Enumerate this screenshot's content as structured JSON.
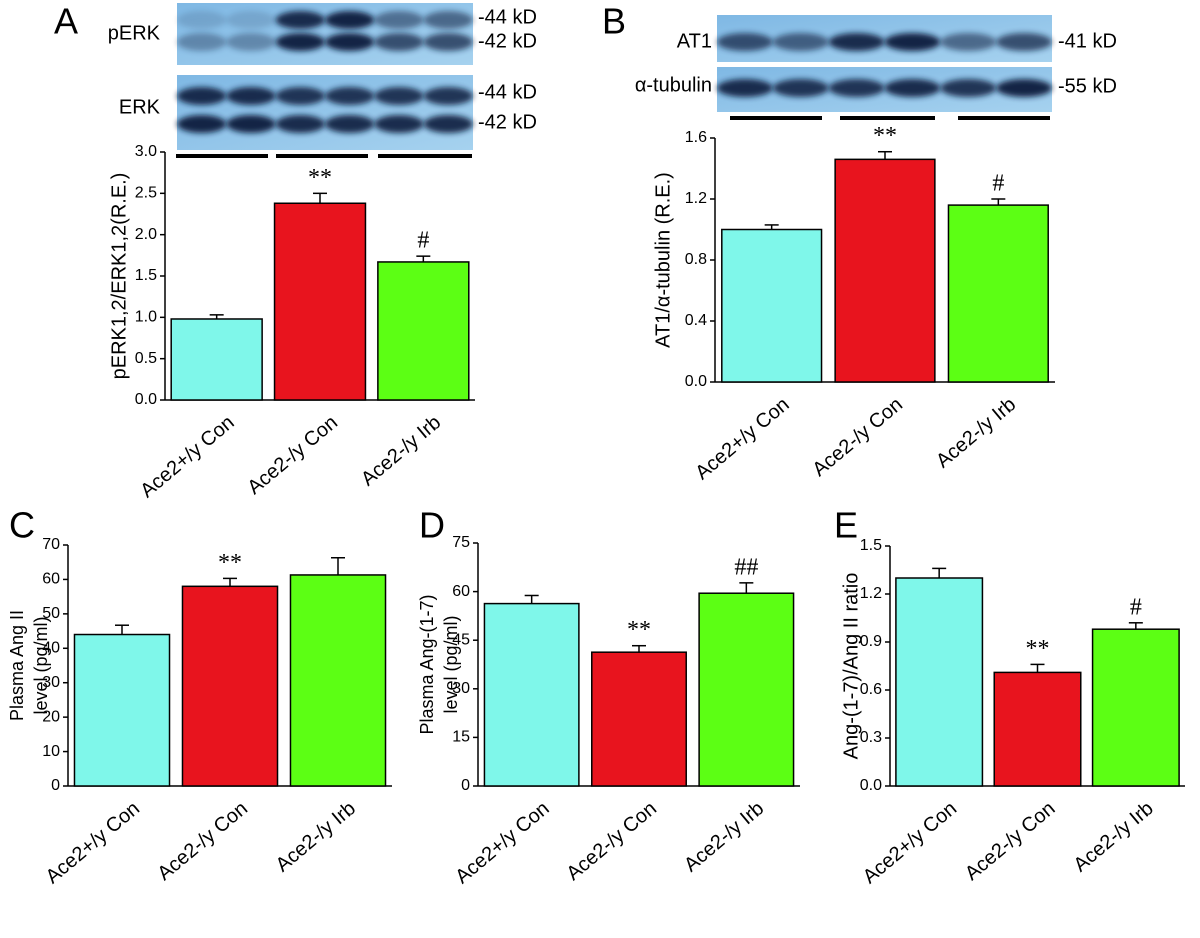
{
  "chart_data": [
    {
      "type": "bar",
      "panel": "A",
      "y_label": "pERK1,2/ERK1,2(R.E.)",
      "categories": [
        "Ace2+/y Con",
        "Ace2-/y Con",
        "Ace2-/y Irb"
      ],
      "values": [
        0.98,
        2.38,
        1.67
      ],
      "errors": [
        0.05,
        0.12,
        0.07
      ],
      "annotations": [
        null,
        "**",
        "#"
      ],
      "colors": [
        "#7ff7ea",
        "#e8141e",
        "#5cff14"
      ],
      "ylim": [
        0,
        3
      ],
      "yticks": [
        {
          "value": 0,
          "label": "0.0"
        },
        0.5,
        {
          "value": 1,
          "label": "1.0"
        },
        1.5,
        {
          "value": 2,
          "label": "2.0"
        },
        2.5,
        {
          "value": 3,
          "label": "3.0"
        }
      ],
      "blots": [
        {
          "label": "pERK",
          "markers": [
            "-44 kD",
            "-42 kD"
          ]
        },
        {
          "label": "ERK",
          "markers": [
            "-44 kD",
            "-42 kD"
          ]
        }
      ]
    },
    {
      "type": "bar",
      "panel": "B",
      "y_label": "AT1/α-tubulin (R.E.)",
      "categories": [
        "Ace2+/y Con",
        "Ace2-/y Con",
        "Ace2-/y Irb"
      ],
      "values": [
        1.0,
        1.46,
        1.16
      ],
      "errors": [
        0.03,
        0.05,
        0.04
      ],
      "annotations": [
        null,
        "**",
        "#"
      ],
      "colors": [
        "#7ff7ea",
        "#e8141e",
        "#5cff14"
      ],
      "ylim": [
        0,
        1.6
      ],
      "yticks": [
        {
          "value": 0,
          "label": "0.0"
        },
        0.4,
        0.8,
        1.2,
        1.6
      ],
      "blots": [
        {
          "label": "AT1",
          "markers": [
            "-41 kD"
          ]
        },
        {
          "label": "α-tubulin",
          "markers": [
            "-55 kD"
          ]
        }
      ]
    },
    {
      "type": "bar",
      "panel": "C",
      "y_label": [
        "Plasma Ang II",
        "level (pg/ml)"
      ],
      "categories": [
        "Ace2+/y Con",
        "Ace2-/y Con",
        "Ace2-/y Irb"
      ],
      "values": [
        44,
        58,
        61.3
      ],
      "errors": [
        2.7,
        2.3,
        5
      ],
      "annotations": [
        null,
        "**",
        null
      ],
      "colors": [
        "#7ff7ea",
        "#e8141e",
        "#5cff14"
      ],
      "ylim": [
        0,
        70
      ],
      "yticks": [
        0,
        10,
        20,
        30,
        40,
        50,
        60,
        70
      ]
    },
    {
      "type": "bar",
      "panel": "D",
      "y_label": [
        "Plasma Ang-(1-7)",
        "level (pg/ml)"
      ],
      "categories": [
        "Ace2+/y Con",
        "Ace2-/y Con",
        "Ace2-/y Irb"
      ],
      "values": [
        56.3,
        41.3,
        59.5
      ],
      "errors": [
        2.5,
        2,
        3.2
      ],
      "annotations": [
        null,
        "**",
        "##"
      ],
      "colors": [
        "#7ff7ea",
        "#e8141e",
        "#5cff14"
      ],
      "ylim": [
        0,
        75
      ],
      "yticks": [
        0,
        15,
        30,
        45,
        60,
        75
      ]
    },
    {
      "type": "bar",
      "panel": "E",
      "y_label": "Ang-(1-7)/Ang II ratio",
      "categories": [
        "Ace2+/y Con",
        "Ace2-/y Con",
        "Ace2-/y Irb"
      ],
      "values": [
        1.3,
        0.71,
        0.98
      ],
      "errors": [
        0.06,
        0.05,
        0.04
      ],
      "annotations": [
        null,
        "**",
        "#"
      ],
      "colors": [
        "#7ff7ea",
        "#e8141e",
        "#5cff14"
      ],
      "ylim": [
        0,
        1.5
      ],
      "yticks": [
        {
          "value": 0,
          "label": "0.0"
        },
        0.3,
        0.6,
        0.9,
        1.2,
        1.5
      ]
    }
  ]
}
